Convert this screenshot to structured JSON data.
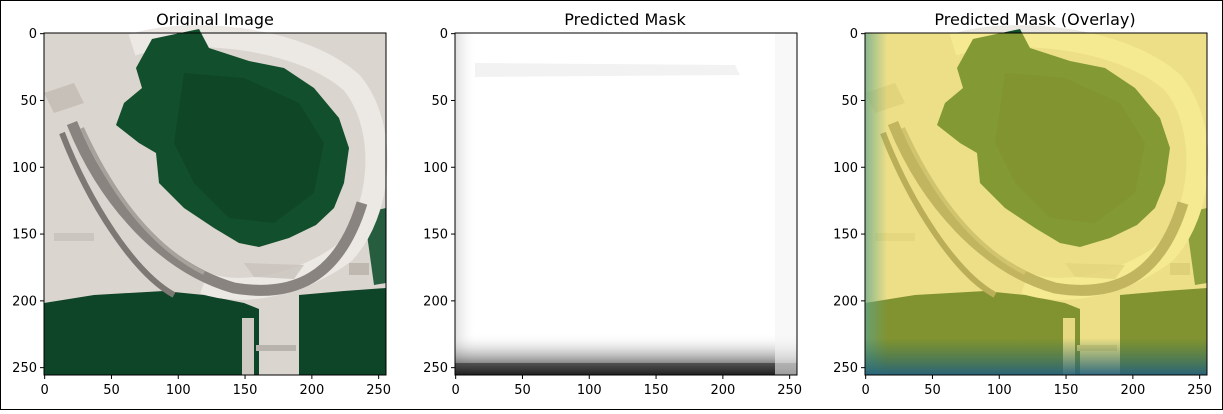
{
  "panels": [
    {
      "id": "original",
      "title": "Original Image",
      "xticks": [
        "0",
        "50",
        "100",
        "150",
        "200",
        "250"
      ],
      "yticks": [
        "0",
        "50",
        "100",
        "150",
        "200",
        "250"
      ],
      "xlim": [
        -0.5,
        255.5
      ],
      "ylim": [
        255.5,
        -0.5
      ],
      "content": "satellite-image"
    },
    {
      "id": "mask",
      "title": "Predicted Mask",
      "xticks": [
        "0",
        "50",
        "100",
        "150",
        "200",
        "250"
      ],
      "yticks": [
        "0",
        "50",
        "100",
        "150",
        "200",
        "250"
      ],
      "xlim": [
        -0.5,
        255.5
      ],
      "ylim": [
        255.5,
        -0.5
      ],
      "content": "grayscale-mask"
    },
    {
      "id": "overlay",
      "title": "Predicted Mask (Overlay)",
      "xticks": [
        "0",
        "50",
        "100",
        "150",
        "200",
        "250"
      ],
      "yticks": [
        "0",
        "50",
        "100",
        "150",
        "200",
        "250"
      ],
      "xlim": [
        -0.5,
        255.5
      ],
      "ylim": [
        255.5,
        -0.5
      ],
      "content": "satellite-with-yellow-overlay"
    }
  ],
  "colors": {
    "water": "#0f4a2c",
    "water_dark": "#0b3a22",
    "land": "#d8d2cb",
    "road": "#8f8a86",
    "overlay_tint": "#ffeb3b",
    "mask_bg": "#ffffff",
    "frame": "#000000"
  }
}
